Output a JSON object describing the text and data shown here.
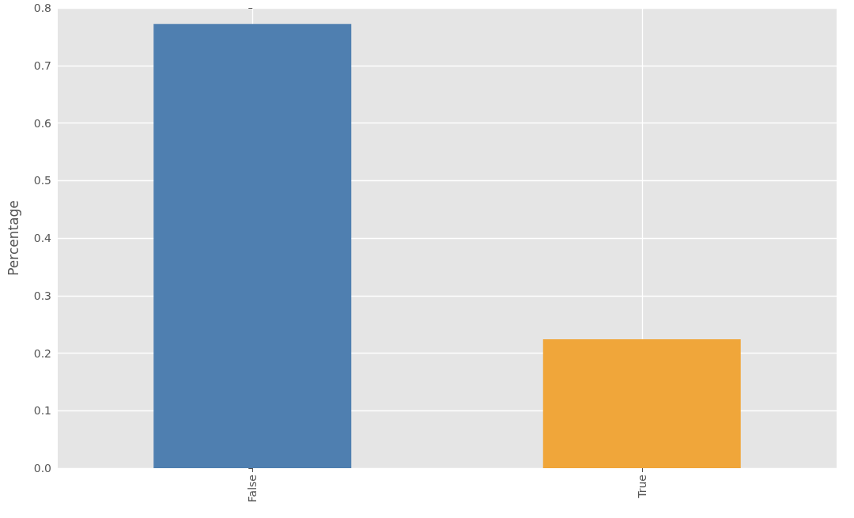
{
  "chart_data": {
    "type": "bar",
    "ylabel": "Percentage",
    "categories": [
      "False",
      "True"
    ],
    "colors": [
      "#4f7fb0",
      "#f0a63a"
    ],
    "values": [
      0.772,
      0.224
    ],
    "ylim": [
      0,
      0.8
    ],
    "yticks": [
      {
        "value": 0,
        "label": "0.0"
      },
      0.1,
      0.2,
      0.3,
      0.4,
      0.5,
      0.6,
      0.7,
      0.8
    ],
    "grid": true
  }
}
